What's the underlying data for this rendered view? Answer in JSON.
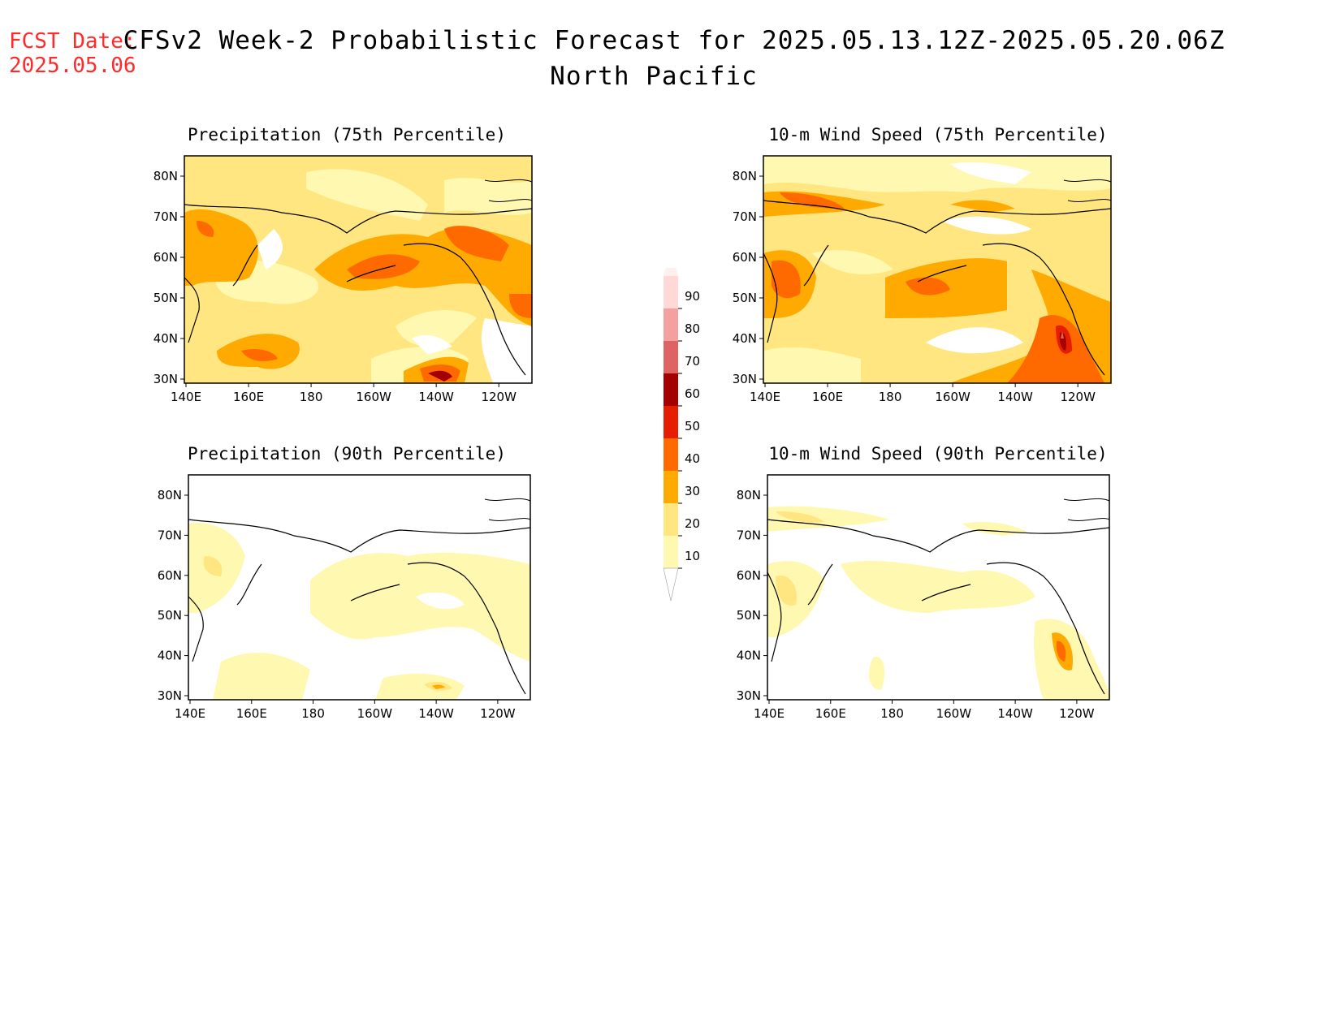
{
  "header": {
    "fcst_label": "FCST Date:",
    "fcst_date": "2025.05.06",
    "title": "CFSv2 Week-2 Probabilistic Forecast for 2025.05.13.12Z-2025.05.20.06Z",
    "subtitle": "North Pacific"
  },
  "panels": [
    {
      "id": "precip75",
      "title": "Precipitation (75th Percentile)"
    },
    {
      "id": "wind75",
      "title": "10-m Wind Speed (75th Percentile)"
    },
    {
      "id": "precip90",
      "title": "Precipitation (90th Percentile)"
    },
    {
      "id": "wind90",
      "title": "10-m Wind Speed (90th Percentile)"
    }
  ],
  "axes": {
    "lon_ticks": [
      "140E",
      "160E",
      "180",
      "160W",
      "140W",
      "120W"
    ],
    "lat_ticks": [
      "80N",
      "70N",
      "60N",
      "50N",
      "40N",
      "30N"
    ]
  },
  "colorbar": {
    "levels": [
      "10",
      "20",
      "30",
      "40",
      "50",
      "60",
      "70",
      "80",
      "90"
    ],
    "colors": [
      "#fff8b0",
      "#ffe680",
      "#ffaa00",
      "#ff6a00",
      "#e61e00",
      "#a50000",
      "#de6464",
      "#f5a0a0",
      "#ffd8d8"
    ]
  }
}
